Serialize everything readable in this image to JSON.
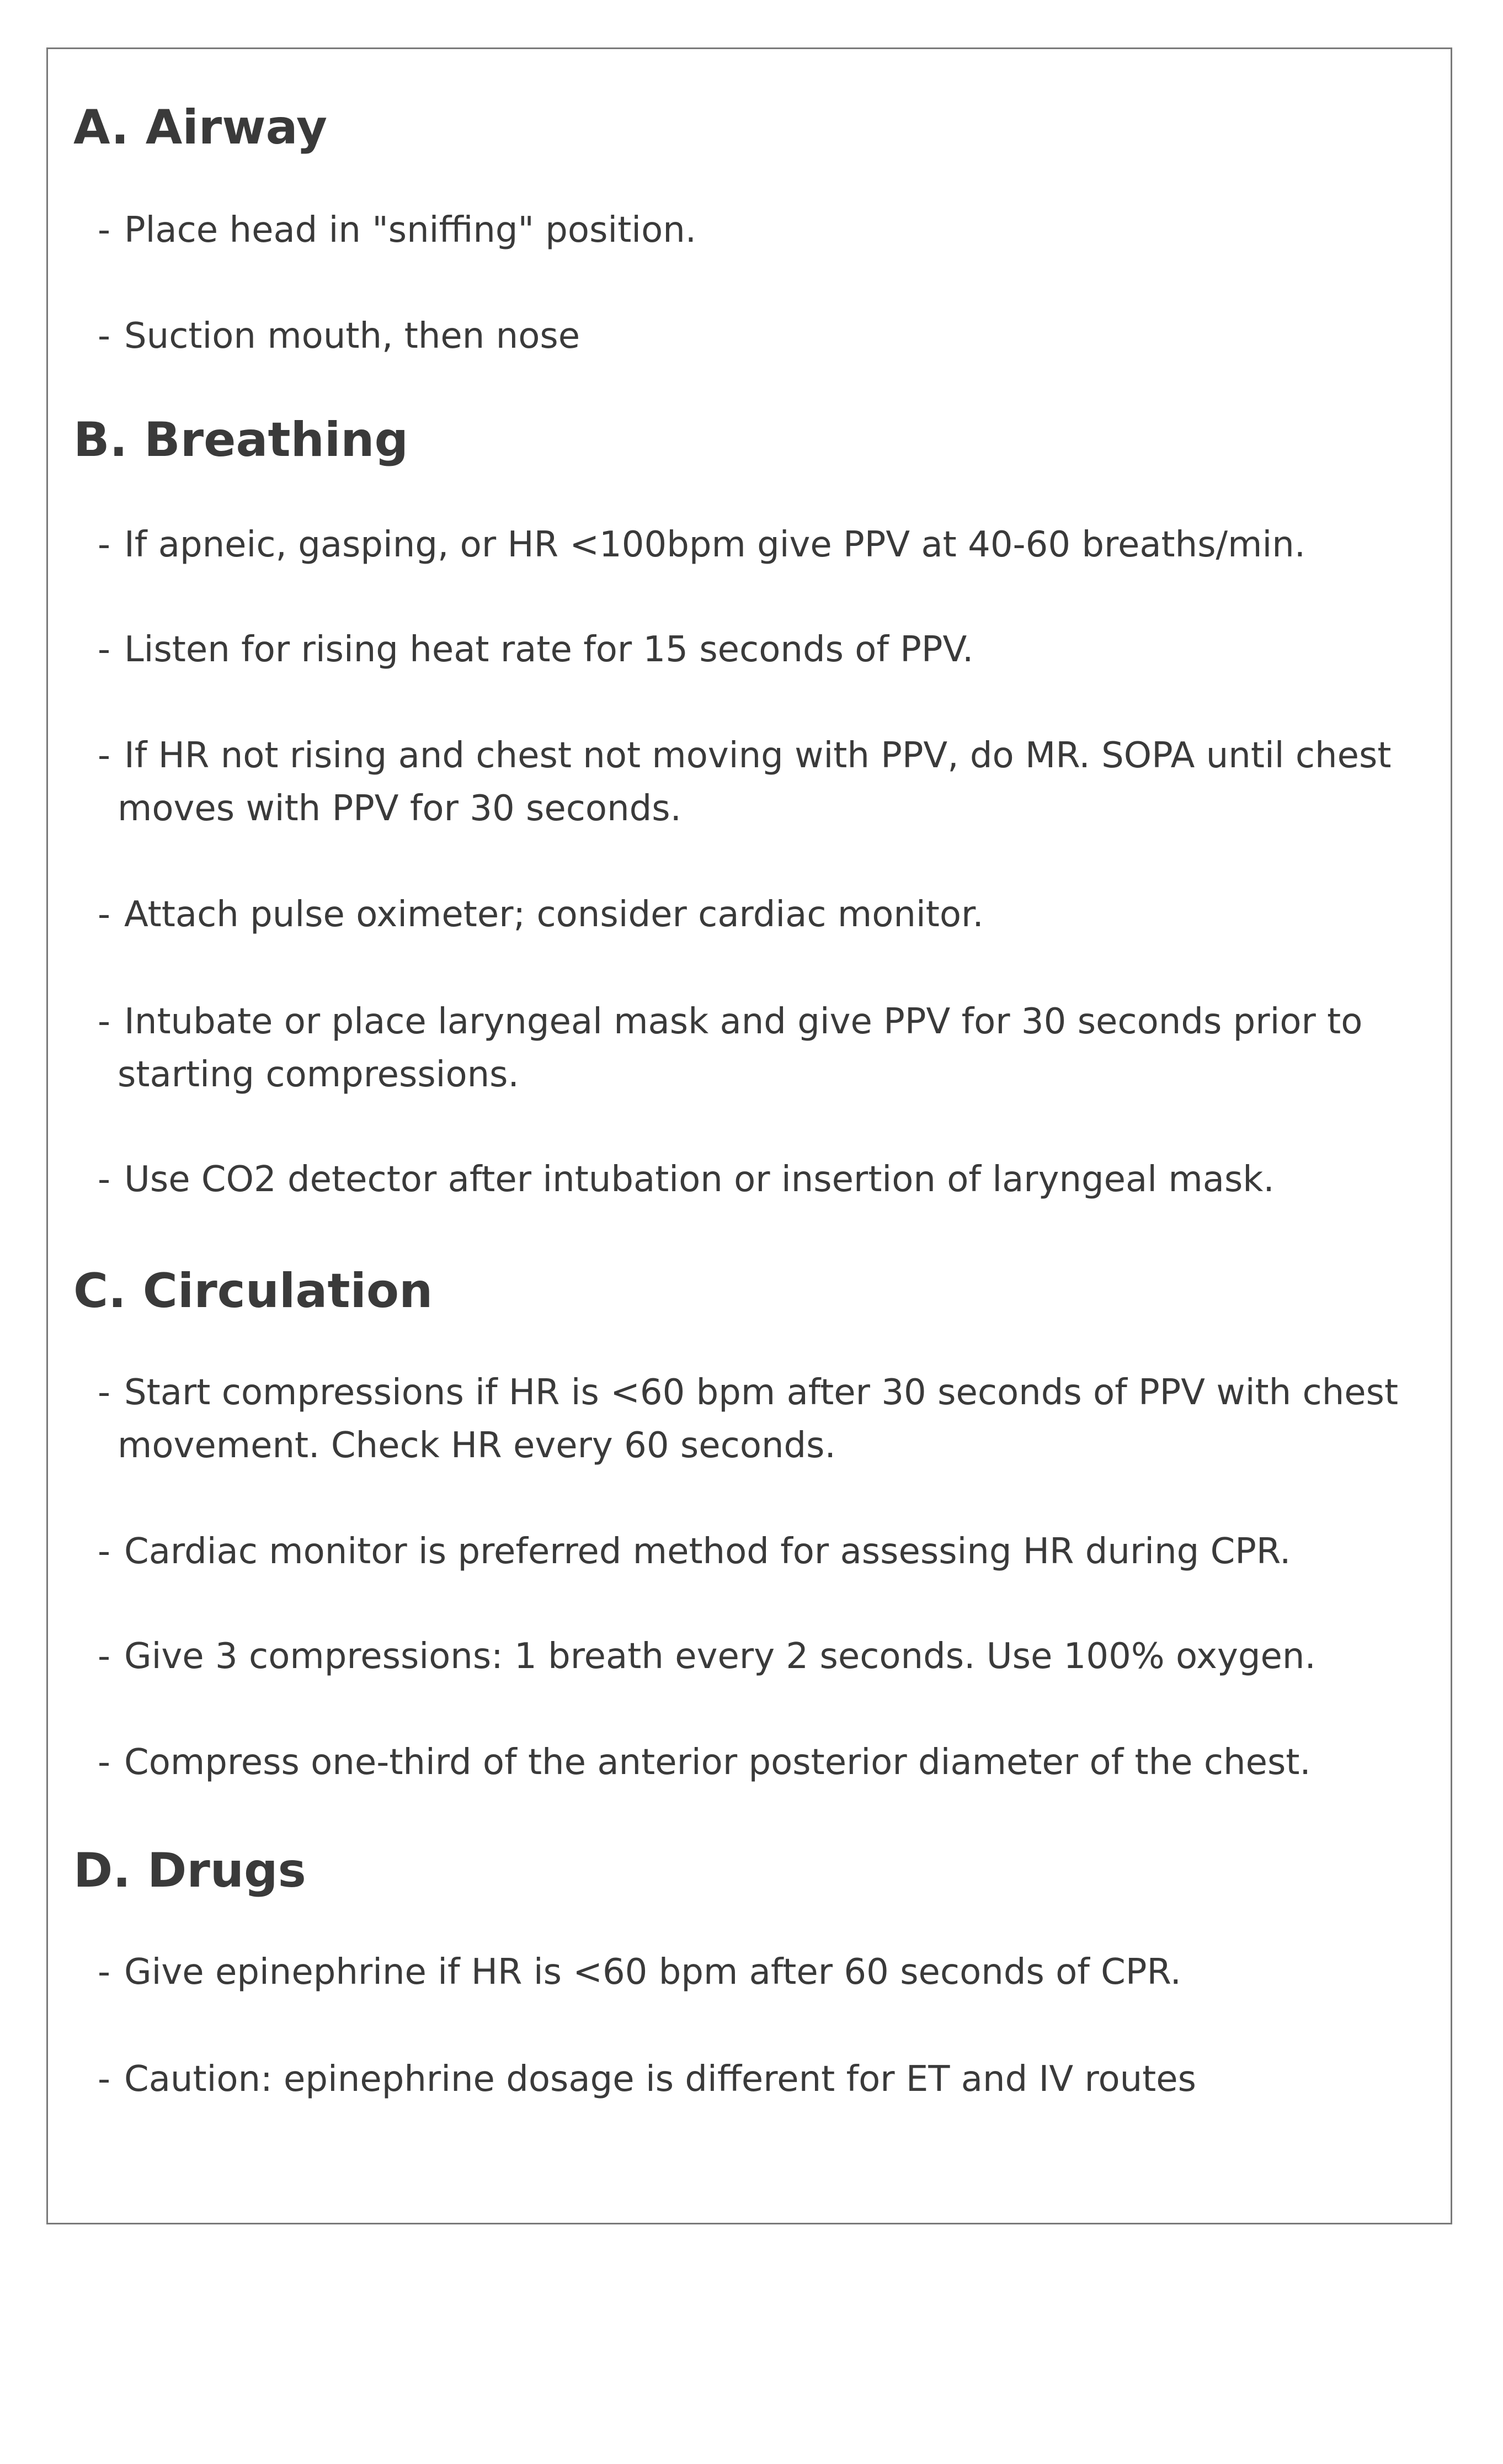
{
  "sections": [
    {
      "heading": "A. Airway",
      "items": [
        {
          "lines": [
            "Place head in \"sniffing\" position."
          ]
        },
        {
          "lines": [
            "Suction mouth, then nose"
          ]
        }
      ]
    },
    {
      "heading": "B. Breathing",
      "items": [
        {
          "lines": [
            "If apneic, gasping, or HR <100bpm  give PPV at 40-60 breaths/min."
          ]
        },
        {
          "lines": [
            "Listen for rising heat rate for 15 seconds of PPV."
          ]
        },
        {
          "lines": [
            "If HR not rising and chest not moving with PPV, do MR. SOPA until chest",
            "moves with PPV for 30 seconds."
          ]
        },
        {
          "lines": [
            "Attach pulse oximeter; consider cardiac monitor."
          ]
        },
        {
          "lines": [
            "Intubate or place laryngeal mask and give PPV for 30 seconds prior to",
            "starting compressions."
          ]
        },
        {
          "lines": [
            "Use CO2 detector after intubation or insertion of laryngeal mask."
          ]
        }
      ]
    },
    {
      "heading": "C. Circulation",
      "items": [
        {
          "lines": [
            "Start compressions if HR is <60 bpm after 30 seconds of PPV with chest",
            "movement. Check HR every 60 seconds."
          ]
        },
        {
          "lines": [
            "Cardiac monitor is preferred method for assessing HR during CPR."
          ]
        },
        {
          "lines": [
            "Give 3 compressions: 1 breath every 2 seconds. Use 100% oxygen."
          ]
        },
        {
          "lines": [
            "Compress one-third of the anterior posterior diameter of the chest."
          ]
        }
      ]
    },
    {
      "heading": "D. Drugs",
      "items": [
        {
          "lines": [
            "Give epinephrine if HR is <60 bpm after 60 seconds of CPR."
          ]
        },
        {
          "lines": [
            "Caution: epinephrine dosage is different for ET and IV routes"
          ]
        }
      ]
    }
  ]
}
